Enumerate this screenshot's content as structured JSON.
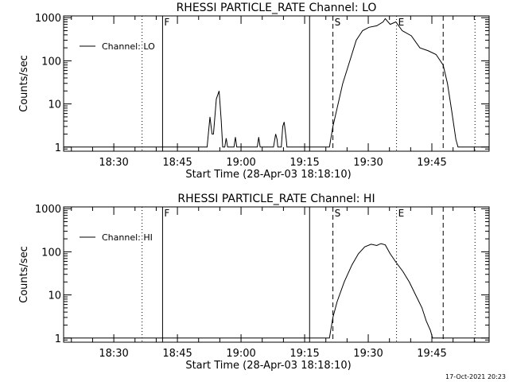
{
  "footer_stamp": "17-Oct-2021 20:23",
  "chart_data": [
    {
      "type": "line",
      "title": "RHESSI PARTICLE_RATE Channel: LO",
      "xlabel": "Start Time (28-Apr-03 18:18:10)",
      "ylabel": "Counts/sec",
      "y_scale": "log",
      "xlim": [
        "18:18:10",
        "19:58:30"
      ],
      "ylim": [
        0.8,
        1100
      ],
      "x_ticks": [
        "18:30",
        "18:45",
        "19:00",
        "19:15",
        "19:30",
        "19:45"
      ],
      "y_ticks": [
        "1",
        "10",
        "100",
        "1000"
      ],
      "legend": {
        "position": "top-left",
        "entries": [
          "Channel: LO"
        ]
      },
      "markers": [
        {
          "label": "F",
          "time": "18:41:30",
          "style": "solid"
        },
        {
          "label": "S",
          "time": "19:21:40",
          "style": "dashed"
        },
        {
          "label": "E",
          "time": "19:36:40",
          "style": "dotted"
        }
      ],
      "extra_lines": [
        {
          "time": "18:36:40",
          "style": "dotted"
        },
        {
          "time": "19:16:10",
          "style": "solid"
        },
        {
          "time": "19:47:40",
          "style": "dashed"
        },
        {
          "time": "19:55:10",
          "style": "dotted"
        }
      ],
      "series": [
        {
          "name": "Channel: LO",
          "points": [
            [
              "18:18:10",
              1
            ],
            [
              "18:52:00",
              1
            ],
            [
              "18:52:40",
              5
            ],
            [
              "18:53:10",
              2
            ],
            [
              "18:53:30",
              2
            ],
            [
              "18:54:10",
              13
            ],
            [
              "18:54:50",
              20
            ],
            [
              "18:55:20",
              4
            ],
            [
              "18:55:40",
              1
            ],
            [
              "18:56:10",
              1
            ],
            [
              "18:56:30",
              1.6
            ],
            [
              "18:56:50",
              1
            ],
            [
              "18:58:20",
              1
            ],
            [
              "18:58:40",
              1.7
            ],
            [
              "18:59:00",
              1
            ],
            [
              "19:03:50",
              1
            ],
            [
              "19:04:10",
              1.7
            ],
            [
              "19:04:30",
              1
            ],
            [
              "19:07:40",
              1
            ],
            [
              "19:08:10",
              2
            ],
            [
              "19:08:30",
              1.5
            ],
            [
              "19:08:40",
              1
            ],
            [
              "19:09:30",
              1
            ],
            [
              "19:09:50",
              3
            ],
            [
              "19:10:10",
              3.8
            ],
            [
              "19:10:40",
              1.5
            ],
            [
              "19:10:50",
              1
            ],
            [
              "19:20:50",
              1
            ],
            [
              "19:21:40",
              3
            ],
            [
              "19:22:40",
              8
            ],
            [
              "19:24:00",
              30
            ],
            [
              "19:25:40",
              100
            ],
            [
              "19:27:10",
              300
            ],
            [
              "19:28:40",
              500
            ],
            [
              "19:30:10",
              600
            ],
            [
              "19:32:00",
              650
            ],
            [
              "19:33:30",
              800
            ],
            [
              "19:34:00",
              950
            ],
            [
              "19:35:10",
              700
            ],
            [
              "19:36:30",
              800
            ],
            [
              "19:38:00",
              500
            ],
            [
              "19:40:10",
              380
            ],
            [
              "19:42:10",
              200
            ],
            [
              "19:44:10",
              170
            ],
            [
              "19:46:00",
              140
            ],
            [
              "19:47:40",
              80
            ],
            [
              "19:48:40",
              30
            ],
            [
              "19:49:40",
              7
            ],
            [
              "19:50:40",
              1.5
            ],
            [
              "19:51:10",
              1
            ],
            [
              "19:58:30",
              1
            ]
          ]
        }
      ]
    },
    {
      "type": "line",
      "title": "RHESSI PARTICLE_RATE Channel: HI",
      "xlabel": "Start Time (28-Apr-03 18:18:10)",
      "ylabel": "Counts/sec",
      "y_scale": "log",
      "xlim": [
        "18:18:10",
        "19:58:30"
      ],
      "ylim": [
        0.8,
        1100
      ],
      "x_ticks": [
        "18:30",
        "18:45",
        "19:00",
        "19:15",
        "19:30",
        "19:45"
      ],
      "y_ticks": [
        "1",
        "10",
        "100",
        "1000"
      ],
      "legend": {
        "position": "top-left",
        "entries": [
          "Channel: HI"
        ]
      },
      "markers": [
        {
          "label": "F",
          "time": "18:41:30",
          "style": "solid"
        },
        {
          "label": "S",
          "time": "19:21:40",
          "style": "dashed"
        },
        {
          "label": "E",
          "time": "19:36:40",
          "style": "dotted"
        }
      ],
      "extra_lines": [
        {
          "time": "18:36:40",
          "style": "dotted"
        },
        {
          "time": "19:16:10",
          "style": "solid"
        },
        {
          "time": "19:47:40",
          "style": "dashed"
        },
        {
          "time": "19:55:10",
          "style": "dotted"
        }
      ],
      "series": [
        {
          "name": "Channel: HI",
          "points": [
            [
              "18:18:10",
              1
            ],
            [
              "19:20:50",
              1
            ],
            [
              "19:21:40",
              3
            ],
            [
              "19:22:40",
              7
            ],
            [
              "19:24:20",
              20
            ],
            [
              "19:26:10",
              50
            ],
            [
              "19:27:40",
              90
            ],
            [
              "19:29:10",
              130
            ],
            [
              "19:30:40",
              150
            ],
            [
              "19:32:00",
              140
            ],
            [
              "19:33:00",
              155
            ],
            [
              "19:34:00",
              145
            ],
            [
              "19:35:10",
              90
            ],
            [
              "19:36:40",
              55
            ],
            [
              "19:38:10",
              35
            ],
            [
              "19:39:40",
              20
            ],
            [
              "19:41:10",
              10
            ],
            [
              "19:42:40",
              5
            ],
            [
              "19:43:40",
              2.5
            ],
            [
              "19:44:40",
              1.5
            ],
            [
              "19:45:10",
              1
            ],
            [
              "19:58:30",
              1
            ]
          ]
        }
      ]
    }
  ]
}
